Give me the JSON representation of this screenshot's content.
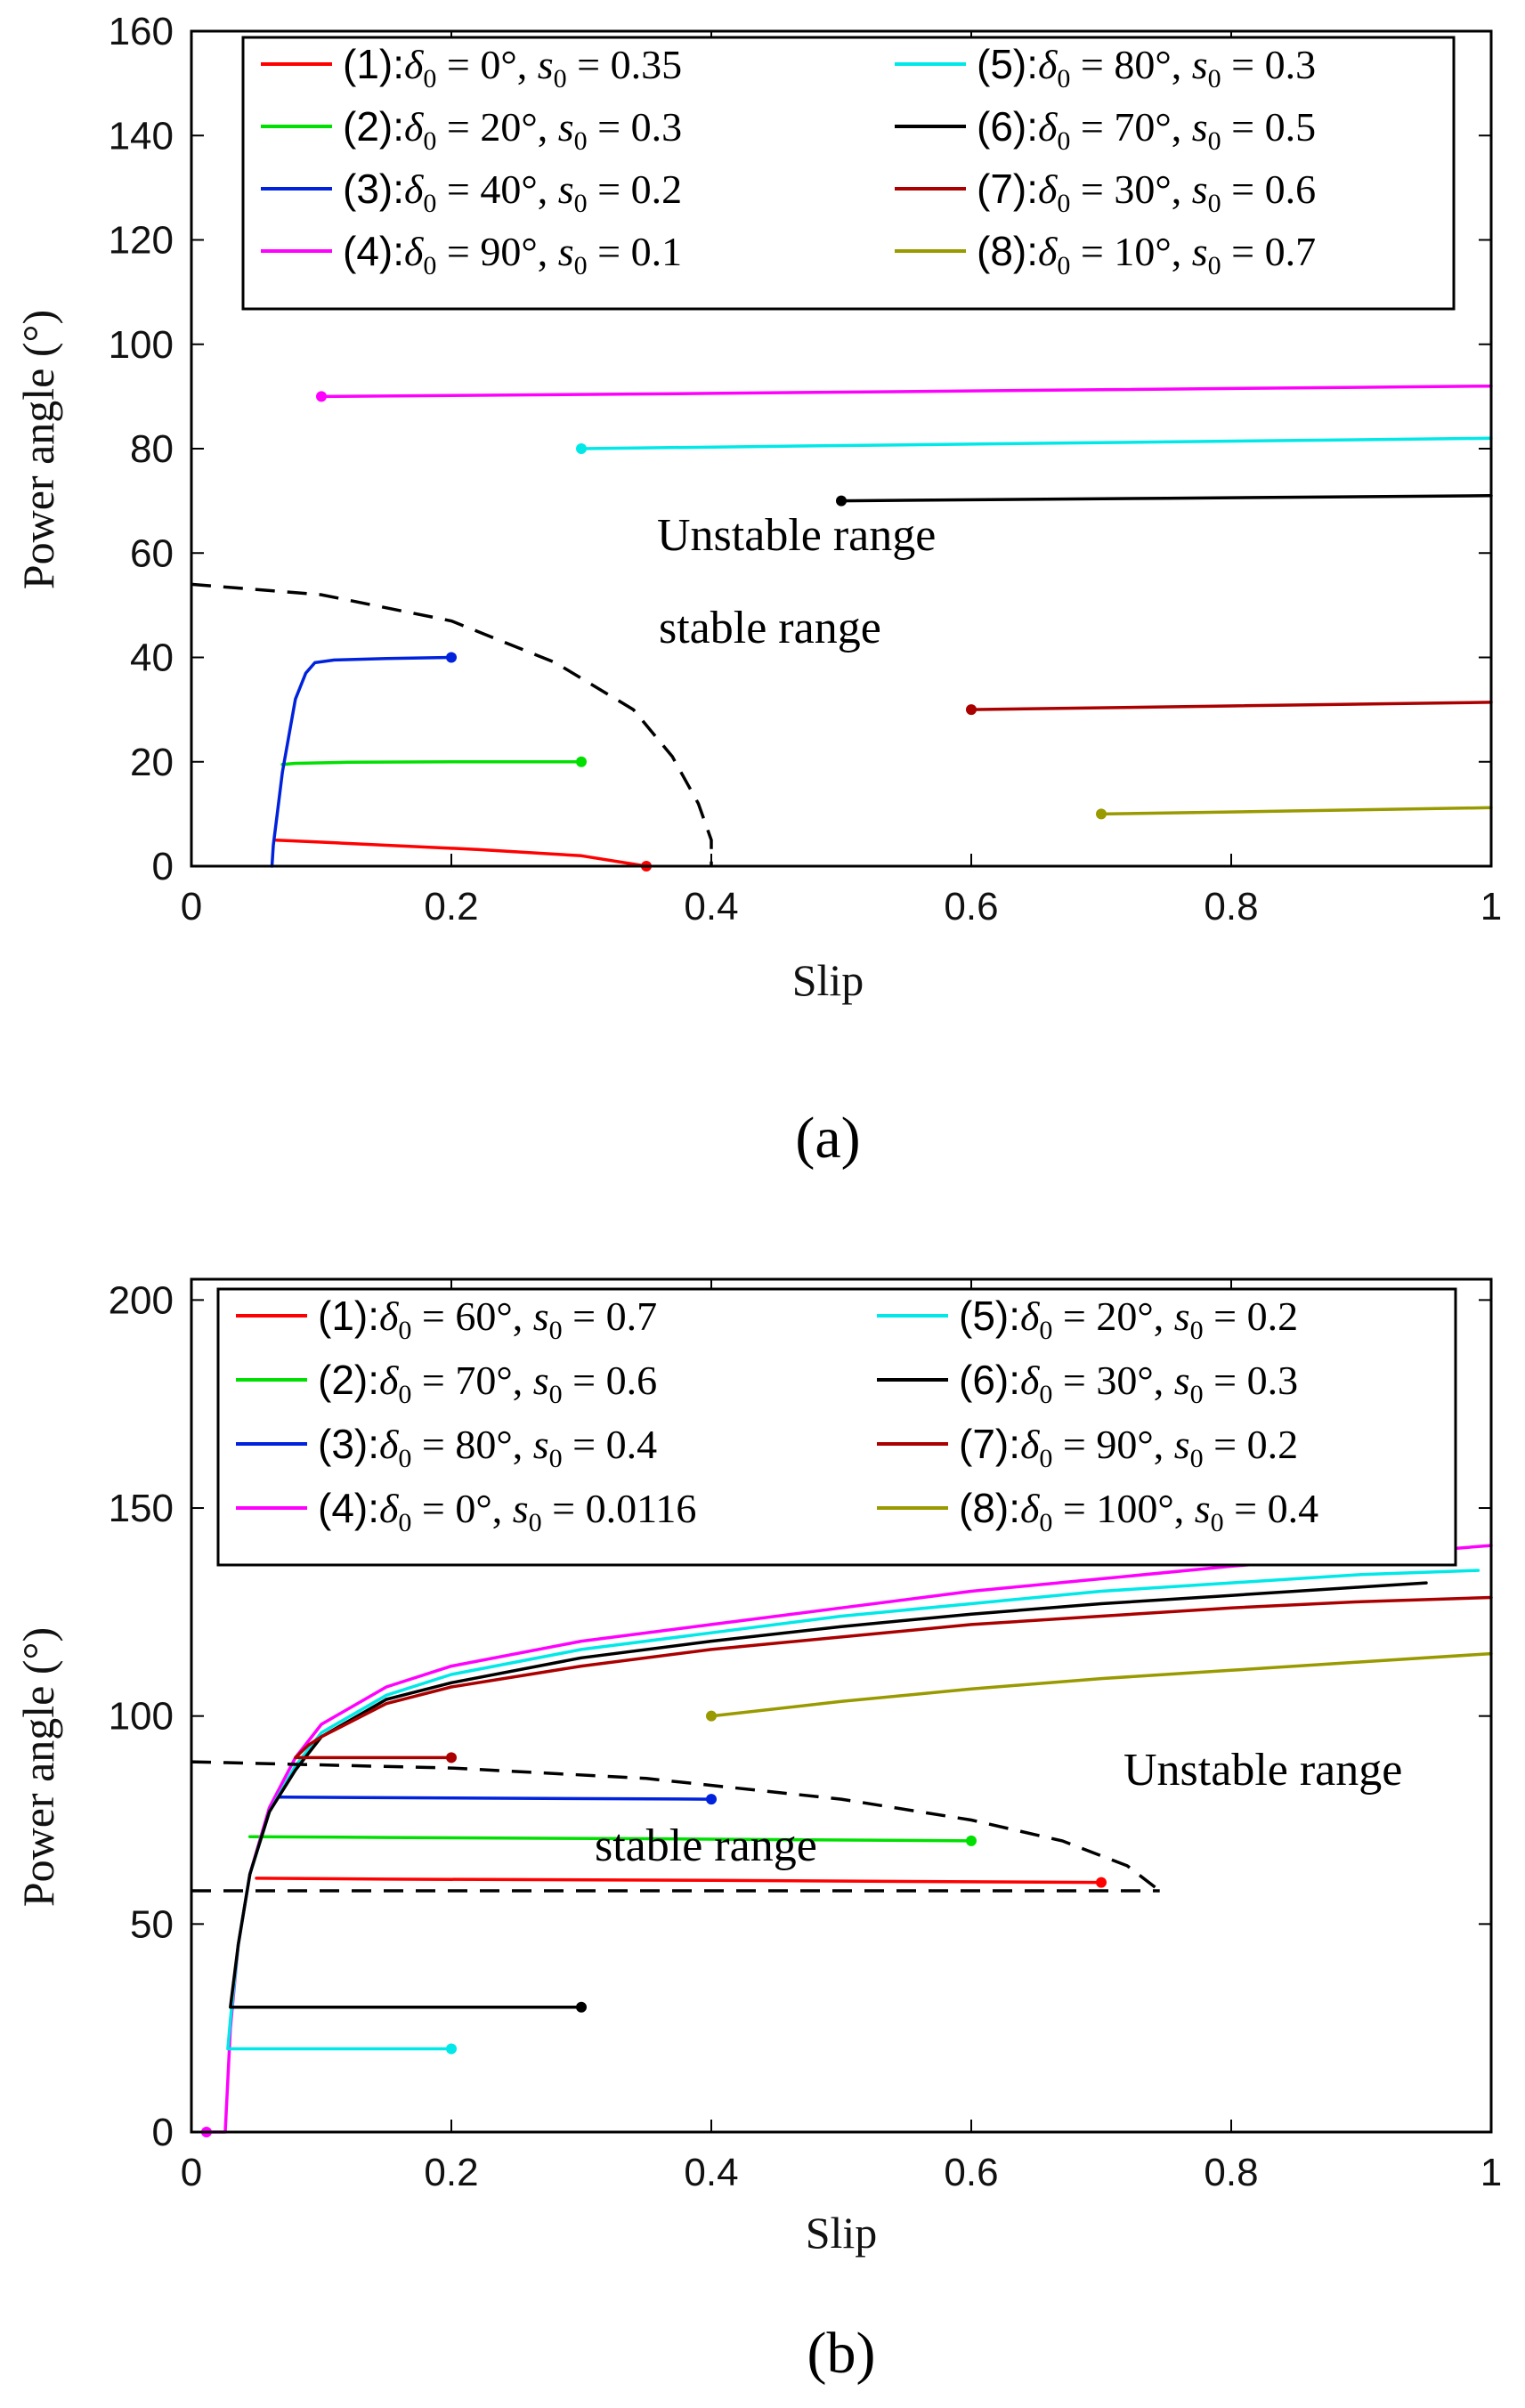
{
  "colors": {
    "c1": "#ff0000",
    "c2": "#00e000",
    "c3": "#0022dd",
    "c4": "#ff00ff",
    "c5": "#00e8e8",
    "c6": "#000000",
    "c7": "#aa0000",
    "c8": "#999900"
  },
  "chart_data": [
    {
      "type": "line",
      "panel_label": "(a)",
      "xlabel": "Slip",
      "ylabel": "Power angle (°)",
      "xlim": [
        0,
        1
      ],
      "ylim": [
        0,
        160
      ],
      "x_ticks": [
        "0",
        "0.2",
        "0.4",
        "0.6",
        "0.8",
        "1"
      ],
      "y_ticks": [
        "0",
        "20",
        "40",
        "60",
        "80",
        "100",
        "120",
        "140",
        "160"
      ],
      "legend_position": "top",
      "annotations": {
        "stable": "stable range",
        "unstable": "Unstable range"
      },
      "boundary": {
        "style": "dashed",
        "points": [
          [
            0,
            54
          ],
          [
            0.1,
            52
          ],
          [
            0.2,
            47
          ],
          [
            0.28,
            39
          ],
          [
            0.34,
            30
          ],
          [
            0.37,
            21
          ],
          [
            0.39,
            12
          ],
          [
            0.4,
            5
          ],
          [
            0.4,
            0
          ]
        ]
      },
      "series": [
        {
          "id": "1",
          "name": "(1):",
          "delta0": "0°",
          "s0": "0.35",
          "color_key": "c1",
          "points": [
            [
              0.35,
              0
            ],
            [
              0.3,
              2
            ],
            [
              0.22,
              3.2
            ],
            [
              0.15,
              4
            ],
            [
              0.1,
              4.6
            ],
            [
              0.065,
              5
            ]
          ]
        },
        {
          "id": "2",
          "name": "(2):",
          "delta0": "20°",
          "s0": "0.3",
          "color_key": "c2",
          "points": [
            [
              0.3,
              20
            ],
            [
              0.2,
              20
            ],
            [
              0.12,
              19.9
            ],
            [
              0.08,
              19.7
            ],
            [
              0.07,
              19.5
            ]
          ]
        },
        {
          "id": "3",
          "name": "(3):",
          "delta0": "40°",
          "s0": "0.2",
          "color_key": "c3",
          "points": [
            [
              0.2,
              40
            ],
            [
              0.15,
              39.8
            ],
            [
              0.11,
              39.5
            ],
            [
              0.095,
              39
            ],
            [
              0.088,
              37
            ],
            [
              0.08,
              32
            ],
            [
              0.075,
              25
            ],
            [
              0.07,
              18
            ],
            [
              0.066,
              10
            ],
            [
              0.063,
              4
            ],
            [
              0.062,
              0
            ]
          ]
        },
        {
          "id": "4",
          "name": "(4):",
          "delta0": "90°",
          "s0": "0.1",
          "color_key": "c4",
          "points": [
            [
              0.1,
              90
            ],
            [
              0.4,
              90.6
            ],
            [
              0.7,
              91.3
            ],
            [
              1.0,
              92
            ]
          ]
        },
        {
          "id": "5",
          "name": "(5):",
          "delta0": "80°",
          "s0": "0.3",
          "color_key": "c5",
          "points": [
            [
              0.3,
              80
            ],
            [
              0.5,
              80.6
            ],
            [
              0.75,
              81.3
            ],
            [
              1.0,
              82
            ]
          ]
        },
        {
          "id": "6",
          "name": "(6):",
          "delta0": "70°",
          "s0": "0.5",
          "color_key": "c6",
          "points": [
            [
              0.5,
              70
            ],
            [
              0.75,
              70.5
            ],
            [
              1.0,
              71
            ]
          ]
        },
        {
          "id": "7",
          "name": "(7):",
          "delta0": "30°",
          "s0": "0.6",
          "color_key": "c7",
          "points": [
            [
              0.6,
              30
            ],
            [
              0.8,
              30.7
            ],
            [
              1.0,
              31.4
            ]
          ]
        },
        {
          "id": "8",
          "name": "(8):",
          "delta0": "10°",
          "s0": "0.7",
          "color_key": "c8",
          "points": [
            [
              0.7,
              10
            ],
            [
              0.85,
              10.6
            ],
            [
              1.0,
              11.2
            ]
          ]
        }
      ]
    },
    {
      "type": "line",
      "panel_label": "(b)",
      "xlabel": "Slip",
      "ylabel": "Power angle (°)",
      "xlim": [
        0,
        1
      ],
      "ylim": [
        0,
        205
      ],
      "x_ticks": [
        "0",
        "0.2",
        "0.4",
        "0.6",
        "0.8",
        "1"
      ],
      "y_ticks": [
        "0",
        "50",
        "100",
        "150",
        "200"
      ],
      "legend_position": "top",
      "annotations": {
        "stable": "stable range",
        "unstable": "Unstable range"
      },
      "boundary": {
        "style": "dashed",
        "upper": [
          [
            0,
            89
          ],
          [
            0.2,
            87.5
          ],
          [
            0.35,
            85
          ],
          [
            0.5,
            80
          ],
          [
            0.6,
            75
          ],
          [
            0.67,
            70
          ],
          [
            0.72,
            64
          ],
          [
            0.745,
            58
          ]
        ],
        "lower": [
          [
            0,
            58
          ],
          [
            0.745,
            58
          ]
        ]
      },
      "series": [
        {
          "id": "1",
          "name": "(1):",
          "delta0": "60°",
          "s0": "0.7",
          "color_key": "c1",
          "points": [
            [
              0.7,
              60
            ],
            [
              0.4,
              60.5
            ],
            [
              0.15,
              60.8
            ],
            [
              0.05,
              61
            ]
          ]
        },
        {
          "id": "2",
          "name": "(2):",
          "delta0": "70°",
          "s0": "0.6",
          "color_key": "c2",
          "points": [
            [
              0.6,
              70
            ],
            [
              0.35,
              70.5
            ],
            [
              0.15,
              70.8
            ],
            [
              0.045,
              71
            ]
          ]
        },
        {
          "id": "3",
          "name": "(3):",
          "delta0": "80°",
          "s0": "0.4",
          "color_key": "c3",
          "points": [
            [
              0.4,
              80
            ],
            [
              0.2,
              80.3
            ],
            [
              0.07,
              80.5
            ],
            [
              0.065,
              80.5
            ]
          ]
        },
        {
          "id": "4",
          "name": "(4):",
          "delta0": "0°",
          "s0": "0.0116",
          "color_key": "c4",
          "points": [
            [
              0.0116,
              0
            ],
            [
              0.026,
              0
            ],
            [
              0.03,
              25
            ],
            [
              0.036,
              45
            ],
            [
              0.045,
              62
            ],
            [
              0.06,
              78
            ],
            [
              0.08,
              90
            ],
            [
              0.1,
              98
            ],
            [
              0.15,
              107
            ],
            [
              0.2,
              112
            ],
            [
              0.3,
              118
            ],
            [
              0.4,
              122
            ],
            [
              0.5,
              126
            ],
            [
              0.6,
              130
            ],
            [
              0.7,
              133
            ],
            [
              0.8,
              136
            ],
            [
              0.9,
              138.5
            ],
            [
              1.0,
              141
            ]
          ]
        },
        {
          "id": "5",
          "name": "(5):",
          "delta0": "20°",
          "s0": "0.2",
          "color_key": "c5",
          "points": [
            [
              0.2,
              20
            ],
            [
              0.1,
              20
            ],
            [
              0.028,
              20
            ],
            [
              0.03,
              27
            ],
            [
              0.036,
              45
            ],
            [
              0.045,
              62
            ],
            [
              0.06,
              77
            ],
            [
              0.08,
              88
            ],
            [
              0.1,
              96
            ],
            [
              0.15,
              105
            ],
            [
              0.2,
              110
            ],
            [
              0.3,
              116
            ],
            [
              0.4,
              120
            ],
            [
              0.5,
              124
            ],
            [
              0.6,
              127
            ],
            [
              0.7,
              130
            ],
            [
              0.8,
              132
            ],
            [
              0.9,
              134
            ],
            [
              0.99,
              135
            ]
          ]
        },
        {
          "id": "6",
          "name": "(6):",
          "delta0": "30°",
          "s0": "0.3",
          "color_key": "c6",
          "points": [
            [
              0.3,
              30
            ],
            [
              0.15,
              30
            ],
            [
              0.03,
              30
            ],
            [
              0.036,
              45
            ],
            [
              0.045,
              62
            ],
            [
              0.06,
              77
            ],
            [
              0.08,
              87
            ],
            [
              0.1,
              95
            ],
            [
              0.15,
              104
            ],
            [
              0.2,
              108
            ],
            [
              0.3,
              114
            ],
            [
              0.4,
              118
            ],
            [
              0.5,
              121.5
            ],
            [
              0.6,
              124.5
            ],
            [
              0.7,
              127
            ],
            [
              0.8,
              129
            ],
            [
              0.9,
              131
            ],
            [
              0.95,
              132
            ]
          ]
        },
        {
          "id": "7",
          "name": "(7):",
          "delta0": "90°",
          "s0": "0.2",
          "color_key": "c7",
          "points": [
            [
              0.2,
              90
            ],
            [
              0.12,
              90
            ],
            [
              0.08,
              90
            ],
            [
              0.09,
              93
            ],
            [
              0.1,
              95
            ],
            [
              0.15,
              103
            ],
            [
              0.2,
              107
            ],
            [
              0.3,
              112
            ],
            [
              0.4,
              116
            ],
            [
              0.5,
              119
            ],
            [
              0.6,
              122
            ],
            [
              0.7,
              124
            ],
            [
              0.8,
              126
            ],
            [
              0.9,
              127.5
            ],
            [
              1.0,
              128.5
            ]
          ]
        },
        {
          "id": "8",
          "name": "(8):",
          "delta0": "100°",
          "s0": "0.4",
          "color_key": "c8",
          "points": [
            [
              0.4,
              100
            ],
            [
              0.5,
              103.5
            ],
            [
              0.6,
              106.5
            ],
            [
              0.7,
              109
            ],
            [
              0.8,
              111
            ],
            [
              0.9,
              113
            ],
            [
              1.0,
              115
            ]
          ]
        }
      ]
    }
  ]
}
